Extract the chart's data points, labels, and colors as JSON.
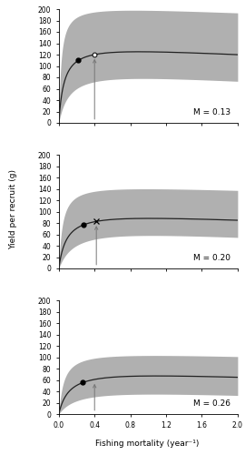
{
  "panels": [
    {
      "M": 0.13,
      "label": "M = 0.13",
      "ypr_asymptote": 125,
      "ypr_k": 0.06,
      "ypr_decay": 0.07,
      "ci_upper_peak": 198,
      "ci_upper_asym": 190,
      "ci_upper_k": 0.025,
      "ci_upper_decay": 0.035,
      "ci_lower_asym": 78,
      "ci_lower_k": 0.12,
      "ci_lower_decay": 0.12,
      "F01": 0.22,
      "Fmax": 0.4,
      "Fcur": 0.4,
      "has_white_dot": true,
      "has_x_marker": false
    },
    {
      "M": 0.2,
      "label": "M = 0.20",
      "ypr_asymptote": 88,
      "ypr_k": 0.09,
      "ypr_decay": 0.08,
      "ci_upper_peak": 140,
      "ci_upper_asym": 135,
      "ci_upper_k": 0.04,
      "ci_upper_decay": 0.04,
      "ci_lower_asym": 58,
      "ci_lower_k": 0.18,
      "ci_lower_decay": 0.14,
      "F01": 0.28,
      "Fmax": 0.42,
      "Fcur": 0.42,
      "has_white_dot": false,
      "has_x_marker": true
    },
    {
      "M": 0.26,
      "label": "M = 0.26",
      "ypr_asymptote": 67,
      "ypr_k": 0.12,
      "ypr_decay": 0.09,
      "ci_upper_peak": 103,
      "ci_upper_asym": 100,
      "ci_upper_k": 0.055,
      "ci_upper_decay": 0.045,
      "ci_lower_asym": 35,
      "ci_lower_k": 0.22,
      "ci_lower_decay": 0.16,
      "F01": 0.27,
      "Fmax": 0.4,
      "Fcur": 0.4,
      "has_white_dot": false,
      "has_x_marker": false
    }
  ],
  "xlim": [
    0.0,
    2.0
  ],
  "ylim": [
    0,
    200
  ],
  "yticks": [
    0,
    20,
    40,
    60,
    80,
    100,
    120,
    140,
    160,
    180,
    200
  ],
  "xticks": [
    0.0,
    0.4,
    0.8,
    1.2,
    1.6,
    2.0
  ],
  "xlabel": "Fishing mortality (year⁻¹)",
  "ylabel": "Yield per recruit (g)",
  "ci_color": "#b0b0b0",
  "line_color": "#222222",
  "arrow_color": "#777777",
  "bg_color": "#ffffff"
}
